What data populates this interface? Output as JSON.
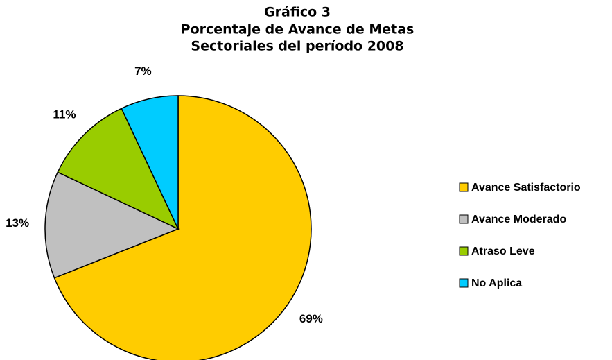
{
  "chart_data": {
    "type": "pie",
    "title": [
      "Gráfico 3",
      "Porcentaje de Avance de Metas",
      "Sectoriales del período 2008"
    ],
    "categories": [
      "Avance Satisfactorio",
      "Avance Moderado",
      "Atraso Leve",
      "No Aplica"
    ],
    "values": [
      69,
      13,
      11,
      7
    ],
    "value_labels": [
      "69%",
      "13%",
      "11%",
      "7%"
    ],
    "colors": [
      "#ffcc00",
      "#c0c0c0",
      "#99cc00",
      "#00ccff"
    ],
    "legend": "right"
  }
}
